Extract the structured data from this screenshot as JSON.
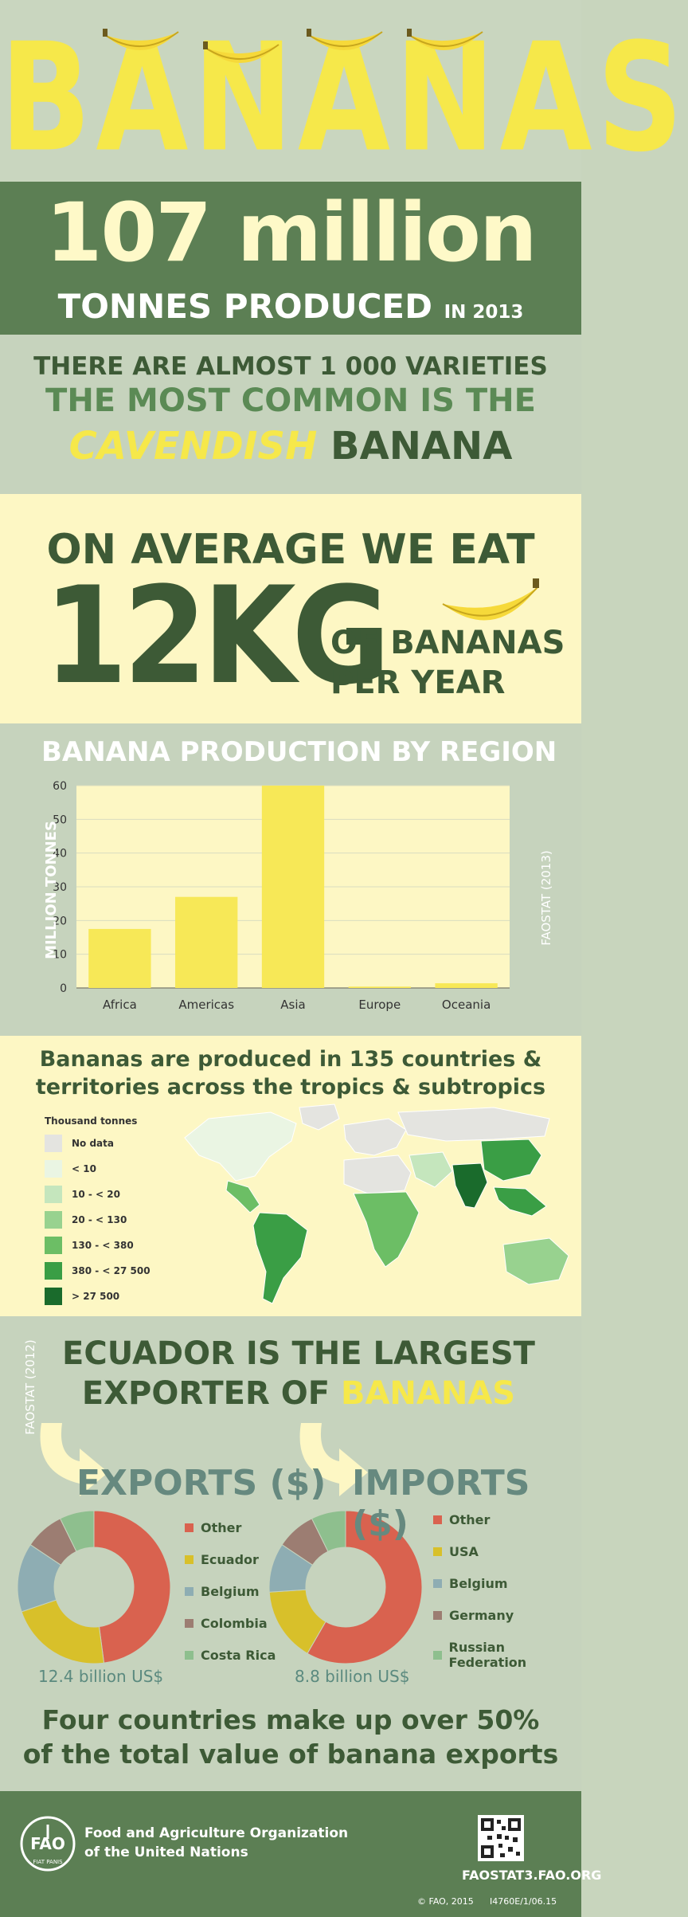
{
  "title": {
    "word": "BANANAS"
  },
  "production": {
    "amount": "107 million",
    "unit": "TONNES PRODUCED",
    "year": "IN 2013"
  },
  "varieties": {
    "line1": "THERE ARE ALMOST 1 000 VARIETIES",
    "line2": "THE MOST COMMON IS THE",
    "highlight": "CAVENDISH",
    "rest": " BANANA"
  },
  "consumption": {
    "line1": "ON AVERAGE WE EAT",
    "amount": "12KG",
    "line2": "OF BANANAS",
    "line3": "PER YEAR"
  },
  "chart_data": {
    "type": "bar",
    "title": "BANANA PRODUCTION BY REGION",
    "ylabel": "MILLION TONNES",
    "xlabel": "",
    "source": "FAOSTAT (2013)",
    "categories": [
      "Africa",
      "Americas",
      "Asia",
      "Europe",
      "Oceania"
    ],
    "values": [
      17.5,
      27,
      60,
      0.4,
      1.4
    ],
    "ylim": [
      0,
      60
    ],
    "yticks": [
      0,
      10,
      20,
      30,
      40,
      50,
      60
    ],
    "grid": true,
    "bar_color": "#f7e857"
  },
  "map": {
    "title_line1": "Bananas are produced in 135 countries &",
    "title_line2": "territories across the tropics & subtropics",
    "legend_title": "Thousand tonnes",
    "legend": [
      {
        "label": "No data",
        "color": "#e4e4e0"
      },
      {
        "label": "< 10",
        "color": "#eaf5e3"
      },
      {
        "label": "10 - < 20",
        "color": "#c5e6bd"
      },
      {
        "label": "20 - < 130",
        "color": "#98d28f"
      },
      {
        "label": "130 - < 380",
        "color": "#6cbe65"
      },
      {
        "label": "380 - < 27 500",
        "color": "#3a9e45"
      },
      {
        "label": "> 27 500",
        "color": "#1a6b2c"
      }
    ]
  },
  "trade": {
    "title_line1": "ECUADOR IS THE LARGEST",
    "title_line2a": "EXPORTER OF ",
    "title_line2b": "BANANAS",
    "source": "FAOSTAT (2012)",
    "exports": {
      "heading": "EXPORTS ($)",
      "total": "12.4 billion US$",
      "slices": [
        {
          "label": "Other",
          "value": 46,
          "color": "#d9624f"
        },
        {
          "label": "Ecuador",
          "value": 21,
          "color": "#d8c02a"
        },
        {
          "label": "Belgium",
          "value": 14,
          "color": "#8eadb3"
        },
        {
          "label": "Colombia",
          "value": 8,
          "color": "#9c7d72"
        },
        {
          "label": "Costa Rica",
          "value": 7,
          "color": "#8ebf8e"
        }
      ]
    },
    "imports": {
      "heading": "IMPORTS ($)",
      "total": "8.8 billion US$",
      "slices": [
        {
          "label": "Other",
          "value": 56,
          "color": "#d9624f"
        },
        {
          "label": "USA",
          "value": 15,
          "color": "#d8c02a"
        },
        {
          "label": "Belgium",
          "value": 10,
          "color": "#8eadb3"
        },
        {
          "label": "Germany",
          "value": 8,
          "color": "#9c7d72"
        },
        {
          "label": "Russian Federation",
          "value": 7,
          "color": "#8ebf8e"
        }
      ]
    },
    "note_line1": "Four countries make up over 50%",
    "note_line2": "of the total value of banana exports"
  },
  "footer": {
    "org_line1": "Food and Agriculture Organization",
    "org_line2": "of the United Nations",
    "logo_text": "FIAT PANIS",
    "site": "FAOSTAT3.FAO.ORG",
    "copyright": "© FAO, 2015",
    "code": "I4760E/1/06.15"
  }
}
